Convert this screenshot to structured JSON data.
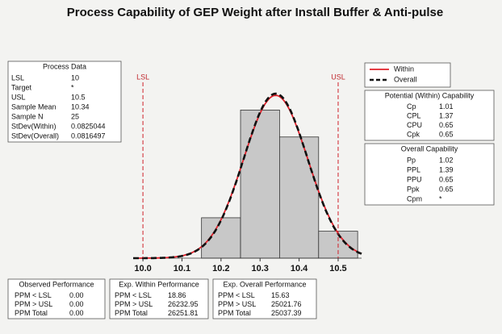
{
  "chart_data": {
    "type": "histogram",
    "title": "Process Capability of GEP Weight after Install Buffer & Anti-pulse",
    "bins": [
      10.15,
      10.25,
      10.35,
      10.45,
      10.55
    ],
    "counts": [
      3,
      11,
      9,
      2
    ],
    "color": "#c8c8c8",
    "xlim": [
      9.975,
      10.56
    ],
    "ylim": [
      0,
      13
    ],
    "xticks": [
      {
        "value": 10,
        "label": "10.0"
      },
      10.1,
      10.2,
      10.3,
      10.4,
      10.5
    ],
    "spec_limits": [
      {
        "label": "LSL",
        "value": 10,
        "color": "#d0202a"
      },
      {
        "label": "USL",
        "value": 10.5,
        "color": "#d0202a"
      }
    ],
    "series": [
      {
        "name": "Within",
        "color": "#e0202a",
        "dashed": false
      },
      {
        "name": "Overall",
        "color": "#111111",
        "dashed": true
      }
    ]
  },
  "panels": {
    "process_data": {
      "title": "Process Data",
      "rows": [
        [
          "LSL",
          10
        ],
        [
          "Target",
          "*"
        ],
        [
          "USL",
          10.5
        ],
        [
          "Sample Mean",
          10.34
        ],
        [
          "Sample N",
          25
        ],
        [
          "StDev(Within)",
          0.0825044
        ],
        [
          "StDev(Overall)",
          0.0816497
        ]
      ]
    },
    "potential": {
      "title": "Potential (Within) Capability",
      "rows": [
        [
          "Cp",
          1.01
        ],
        [
          "CPL",
          1.37
        ],
        [
          "CPU",
          0.65
        ],
        [
          "Cpk",
          0.65
        ]
      ]
    },
    "overall": {
      "title": "Overall Capability",
      "rows": [
        [
          "Pp",
          1.02
        ],
        [
          "PPL",
          1.39
        ],
        [
          "PPU",
          0.65
        ],
        [
          "Ppk",
          0.65
        ],
        [
          "Cpm",
          "*"
        ]
      ]
    },
    "observed": {
      "title": "Observed Performance",
      "rows": [
        [
          "PPM < LSL",
          "0.00"
        ],
        [
          "PPM > USL",
          "0.00"
        ],
        [
          "PPM Total",
          "0.00"
        ]
      ]
    },
    "exp_within": {
      "title": "Exp. Within Performance",
      "rows": [
        [
          "PPM < LSL",
          18.86
        ],
        [
          "PPM > USL",
          26232.95
        ],
        [
          "PPM Total",
          26251.81
        ]
      ]
    },
    "exp_overall": {
      "title": "Exp. Overall Performance",
      "rows": [
        [
          "PPM < LSL",
          15.63
        ],
        [
          "PPM > USL",
          25021.76
        ],
        [
          "PPM Total",
          25037.39
        ]
      ]
    }
  }
}
